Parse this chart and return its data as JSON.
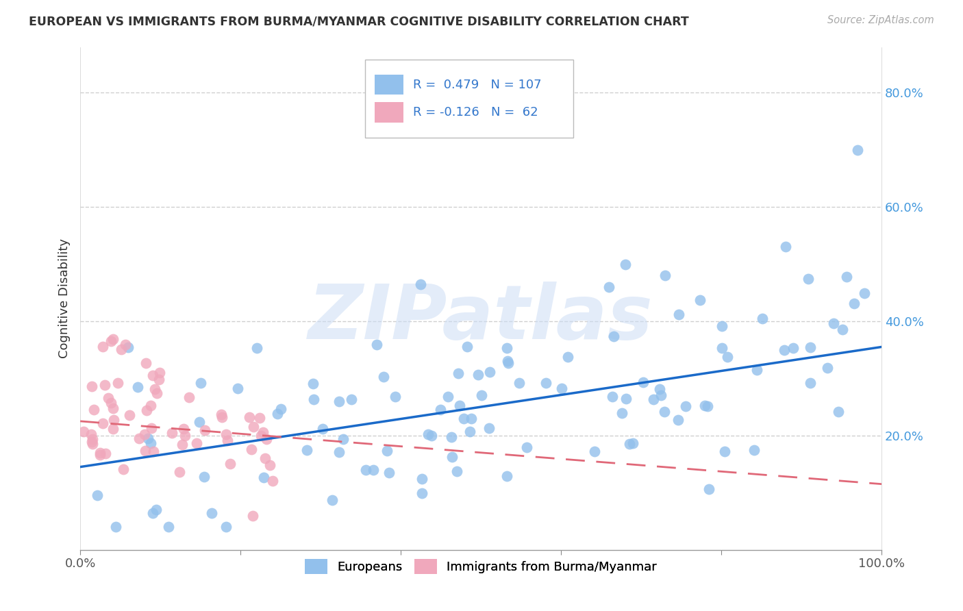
{
  "title": "EUROPEAN VS IMMIGRANTS FROM BURMA/MYANMAR COGNITIVE DISABILITY CORRELATION CHART",
  "source": "Source: ZipAtlas.com",
  "ylabel": "Cognitive Disability",
  "xlim": [
    0.0,
    1.0
  ],
  "ylim": [
    0.0,
    0.88
  ],
  "ytick_labels": [
    "20.0%",
    "40.0%",
    "60.0%",
    "80.0%"
  ],
  "ytick_values": [
    0.2,
    0.4,
    0.6,
    0.8
  ],
  "european_color": "#92c0ec",
  "burma_color": "#f0a8bc",
  "line_european_color": "#1a6ac9",
  "line_burma_color": "#e06878",
  "r_european": 0.479,
  "n_european": 107,
  "r_burma": -0.126,
  "n_burma": 62,
  "legend_label_1": "Europeans",
  "legend_label_2": "Immigrants from Burma/Myanmar",
  "watermark": "ZIPatlas",
  "eu_line_x0": 0.0,
  "eu_line_y0": 0.145,
  "eu_line_x1": 1.0,
  "eu_line_y1": 0.355,
  "bu_line_x0": 0.0,
  "bu_line_y0": 0.225,
  "bu_line_x1": 1.0,
  "bu_line_y1": 0.115
}
